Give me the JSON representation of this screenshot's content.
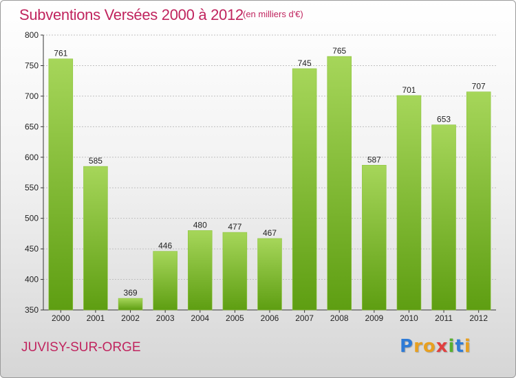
{
  "header": {
    "title": "Subventions Versées 2000 à 2012",
    "subtitle": "(en milliers d'€)"
  },
  "footer": {
    "town": "JUVISY-SUR-ORGE",
    "logo_letters": [
      "P",
      "r",
      "o",
      "x",
      "i",
      "t",
      "i"
    ]
  },
  "colors": {
    "title": "#c0245e",
    "bar_top": "#a6d65a",
    "bar_bottom": "#5e9e12",
    "grid": "#bfbfbf",
    "logo": [
      "#2e7bd6",
      "#e8a020",
      "#e8a020",
      "#e04040",
      "#58b030",
      "#2e7bd6",
      "#e8a020"
    ]
  },
  "chart_data": {
    "type": "bar",
    "title": "Subventions Versées 2000 à 2012",
    "xlabel": "",
    "ylabel": "",
    "categories": [
      "2000",
      "2001",
      "2002",
      "2003",
      "2004",
      "2005",
      "2006",
      "2007",
      "2008",
      "2009",
      "2010",
      "2011",
      "2012"
    ],
    "values": [
      761,
      585,
      369,
      446,
      480,
      477,
      467,
      745,
      765,
      587,
      701,
      653,
      707
    ],
    "ylim": [
      350,
      800
    ],
    "yticks": [
      350,
      400,
      450,
      500,
      550,
      600,
      650,
      700,
      750,
      800
    ],
    "grid": true,
    "legend": "none"
  }
}
